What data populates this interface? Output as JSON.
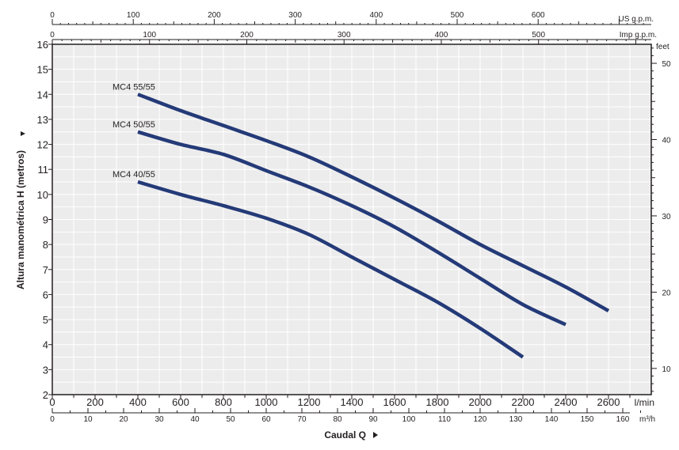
{
  "chart_data": {
    "type": "line",
    "ylabel": "Altura manométrica H (metros)",
    "xlabel": "Caudal Q",
    "x_unit": "l/min",
    "x2_unit": "m³/h",
    "top1_unit": "US g.p.m.",
    "top2_unit": "Imp g.p.m.",
    "right_unit": "feet",
    "xlim": [
      0,
      2800
    ],
    "ylim": [
      2,
      16
    ],
    "grid": true,
    "x_ticks": [
      0,
      200,
      400,
      600,
      800,
      1000,
      1200,
      1400,
      1600,
      1800,
      2000,
      2200,
      2400,
      2600
    ],
    "y_ticks": [
      2,
      3,
      4,
      5,
      6,
      7,
      8,
      9,
      10,
      11,
      12,
      13,
      14,
      15,
      16
    ],
    "m3h_ticks": [
      0,
      10,
      20,
      30,
      40,
      50,
      60,
      70,
      80,
      90,
      100,
      110,
      120,
      130,
      140,
      150,
      160
    ],
    "us_gpm_ticks": [
      0,
      100,
      200,
      300,
      400,
      500,
      600
    ],
    "imp_gpm_ticks": [
      0,
      100,
      200,
      300,
      400,
      500
    ],
    "feet_ticks": [
      10,
      20,
      30,
      40,
      50
    ],
    "series": [
      {
        "name": "MC4 55/55",
        "color": "#243a78",
        "points": [
          [
            400,
            14.0
          ],
          [
            600,
            13.35
          ],
          [
            800,
            12.75
          ],
          [
            1000,
            12.15
          ],
          [
            1200,
            11.5
          ],
          [
            1400,
            10.7
          ],
          [
            1600,
            9.85
          ],
          [
            1800,
            8.95
          ],
          [
            2000,
            8.0
          ],
          [
            2200,
            7.15
          ],
          [
            2400,
            6.3
          ],
          [
            2600,
            5.35
          ]
        ]
      },
      {
        "name": "MC4 50/55",
        "color": "#243a78",
        "points": [
          [
            400,
            12.5
          ],
          [
            600,
            12.0
          ],
          [
            800,
            11.6
          ],
          [
            1000,
            10.95
          ],
          [
            1200,
            10.3
          ],
          [
            1400,
            9.55
          ],
          [
            1600,
            8.7
          ],
          [
            1800,
            7.7
          ],
          [
            2000,
            6.65
          ],
          [
            2200,
            5.6
          ],
          [
            2400,
            4.8
          ]
        ]
      },
      {
        "name": "MC4 40/55",
        "color": "#243a78",
        "points": [
          [
            400,
            10.5
          ],
          [
            600,
            10.0
          ],
          [
            800,
            9.55
          ],
          [
            1000,
            9.05
          ],
          [
            1200,
            8.4
          ],
          [
            1400,
            7.5
          ],
          [
            1600,
            6.6
          ],
          [
            1800,
            5.7
          ],
          [
            2000,
            4.65
          ],
          [
            2200,
            3.5
          ]
        ]
      }
    ]
  }
}
